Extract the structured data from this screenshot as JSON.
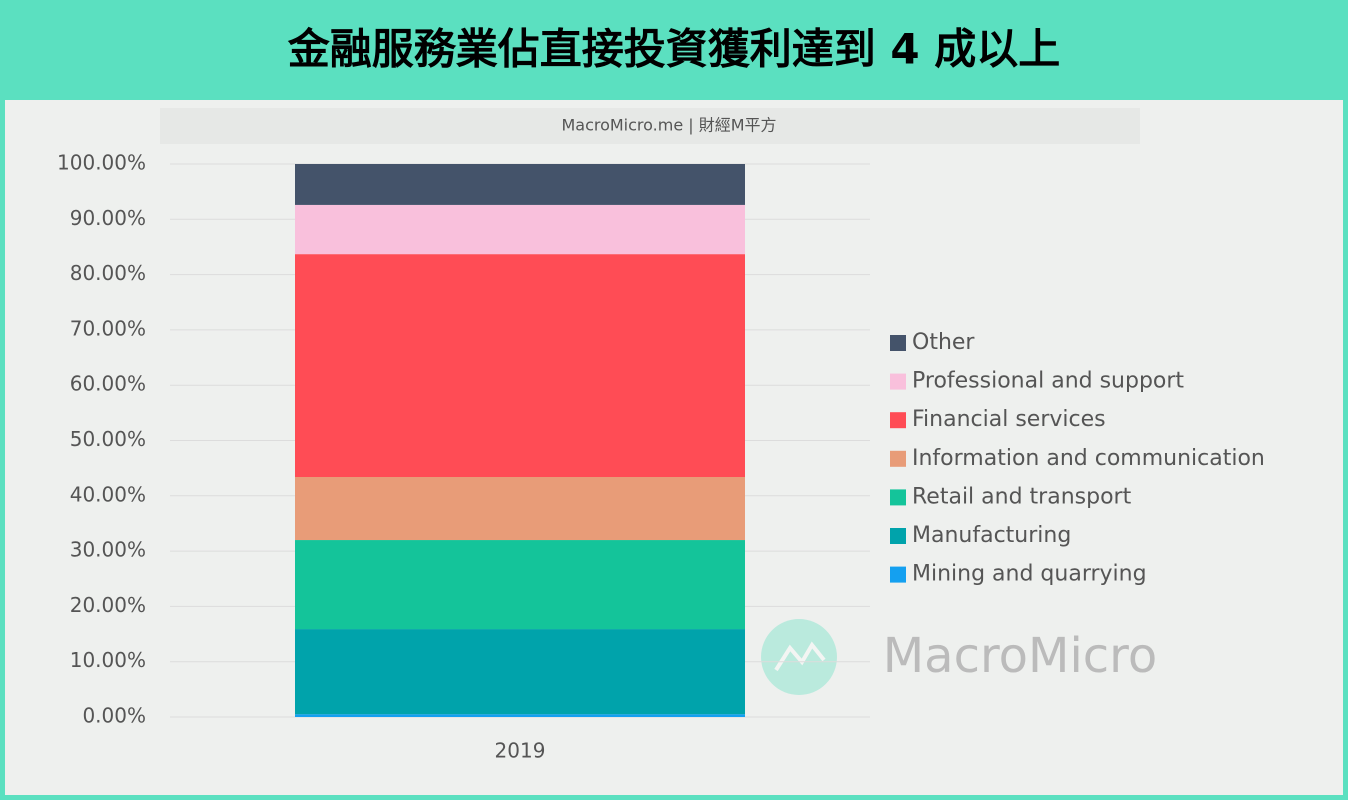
{
  "chart_data": {
    "type": "stacked_bar",
    "title": "金融服務業佔直接投資獲利達到 4 成以上",
    "subtitle": "MacroMicro.me | 財經M平方",
    "watermark": "MacroMicro",
    "categories": [
      "2019"
    ],
    "series": [
      {
        "name": "Mining and quarrying",
        "color": "#14a0f0",
        "values": [
          0.5
        ]
      },
      {
        "name": "Manufacturing",
        "color": "#00a3ab",
        "values": [
          15.4
        ]
      },
      {
        "name": "Retail and transport",
        "color": "#14c49a",
        "values": [
          16.1
        ]
      },
      {
        "name": "Information and communication",
        "color": "#e89c78",
        "values": [
          11.4
        ]
      },
      {
        "name": "Financial services",
        "color": "#ff4c55",
        "values": [
          40.3
        ]
      },
      {
        "name": "Professional and support",
        "color": "#f9c0dc",
        "values": [
          8.9
        ]
      },
      {
        "name": "Other",
        "color": "#44536a",
        "values": [
          7.4
        ]
      }
    ],
    "ylim": [
      0,
      100
    ],
    "yticks": [
      {
        "value": 0,
        "label": "0.00%"
      },
      {
        "value": 10,
        "label": "10.00%"
      },
      {
        "value": 20,
        "label": "20.00%"
      },
      {
        "value": 30,
        "label": "30.00%"
      },
      {
        "value": 40,
        "label": "40.00%"
      },
      {
        "value": 50,
        "label": "50.00%"
      },
      {
        "value": 60,
        "label": "60.00%"
      },
      {
        "value": 70,
        "label": "70.00%"
      },
      {
        "value": 80,
        "label": "80.00%"
      },
      {
        "value": 90,
        "label": "90.00%"
      },
      {
        "value": 100,
        "label": "100.00%"
      }
    ],
    "grid": true,
    "legend": "right"
  }
}
